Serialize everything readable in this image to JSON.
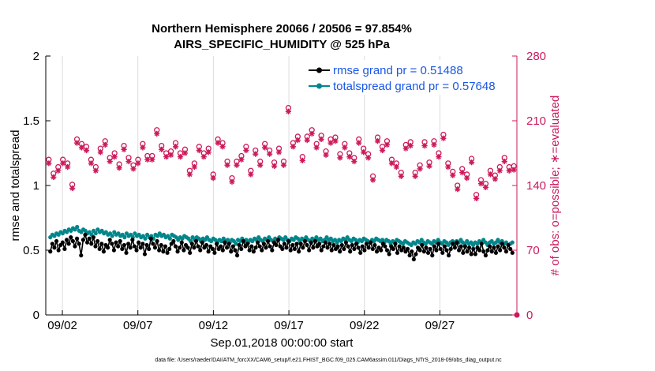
{
  "chart_data": {
    "type": "line",
    "title_line1": "Northern Hemisphere 20066 / 20506 = 97.854%",
    "title_line2": "AIRS_SPECIFIC_HUMIDITY @ 525 hPa",
    "xlabel": "Sep.01,2018 00:00:00 start",
    "ylabel_left": "rmse and totalspread",
    "ylabel_right": "# of obs: o=possible; ∗=evaluated",
    "xlim": [
      0.4,
      31.6
    ],
    "ylim_left": [
      0,
      2
    ],
    "ylim_right": [
      0,
      280
    ],
    "x_ticks": [
      1.5,
      6.5,
      11.5,
      16.5,
      21.5,
      26.5
    ],
    "x_tick_labels": [
      "09/02",
      "09/07",
      "09/12",
      "09/17",
      "09/22",
      "09/27"
    ],
    "y_ticks_left": [
      0,
      0.5,
      1,
      1.5,
      2
    ],
    "y_tick_labels_left": [
      "0",
      "0.5",
      "1",
      "1.5",
      "2"
    ],
    "y_ticks_right": [
      0,
      70,
      140,
      210,
      280
    ],
    "y_tick_labels_right": [
      "0",
      "70",
      "140",
      "210",
      "280"
    ],
    "legend_position": "top-right",
    "footnote": "data file: /Users/raeder/DAI/ATM_forcXX/CAM6_setup/f.e21.FHIST_BGC.f09_025.CAM6assim.011/Diags_NTrS_2018-09/obs_diag_output.nc",
    "colors": {
      "rmse": "#000000",
      "spread": "#00868b",
      "obs": "#cc1a5a",
      "legend_text": "#1a56e8",
      "axis_right": "#cc1a5a"
    },
    "series": [
      {
        "name": "rmse grand pr = 0.51488",
        "color": "#000000",
        "values": [
          0.49,
          0.55,
          0.52,
          0.57,
          0.5,
          0.54,
          0.56,
          0.51,
          0.58,
          0.55,
          0.6,
          0.57,
          0.53,
          0.59,
          0.55,
          0.46,
          0.58,
          0.62,
          0.56,
          0.59,
          0.55,
          0.6,
          0.53,
          0.57,
          0.51,
          0.55,
          0.49,
          0.54,
          0.52,
          0.58,
          0.55,
          0.5,
          0.56,
          0.53,
          0.57,
          0.51,
          0.54,
          0.48,
          0.55,
          0.52,
          0.58,
          0.53,
          0.5,
          0.56,
          0.52,
          0.55,
          0.47,
          0.54,
          0.51,
          0.59,
          0.55,
          0.52,
          0.57,
          0.5,
          0.54,
          0.49,
          0.53,
          0.48,
          0.51,
          0.55,
          0.57,
          0.53,
          0.49,
          0.52,
          0.56,
          0.5,
          0.54,
          0.52,
          0.48,
          0.55,
          0.52,
          0.57,
          0.53,
          0.5,
          0.56,
          0.52,
          0.54,
          0.49,
          0.53,
          0.51,
          0.48,
          0.55,
          0.51,
          0.53,
          0.5,
          0.56,
          0.52,
          0.55,
          0.49,
          0.53,
          0.5,
          0.46,
          0.54,
          0.51,
          0.57,
          0.53,
          0.55,
          0.5,
          0.53,
          0.49,
          0.52,
          0.56,
          0.53,
          0.5,
          0.55,
          0.52,
          0.57,
          0.53,
          0.5,
          0.56,
          0.54,
          0.58,
          0.53,
          0.51,
          0.55,
          0.52,
          0.57,
          0.5,
          0.54,
          0.51,
          0.55,
          0.49,
          0.55,
          0.52,
          0.57,
          0.54,
          0.5,
          0.56,
          0.52,
          0.57,
          0.53,
          0.55,
          0.5,
          0.53,
          0.56,
          0.52,
          0.55,
          0.5,
          0.54,
          0.51,
          0.53,
          0.49,
          0.54,
          0.51,
          0.56,
          0.53,
          0.49,
          0.54,
          0.51,
          0.55,
          0.52,
          0.48,
          0.53,
          0.5,
          0.55,
          0.52,
          0.56,
          0.51,
          0.54,
          0.49,
          0.52,
          0.5,
          0.55,
          0.53,
          0.5,
          0.47,
          0.53,
          0.51,
          0.55,
          0.48,
          0.53,
          0.5,
          0.52,
          0.49,
          0.51,
          0.46,
          0.49,
          0.43,
          0.47,
          0.52,
          0.5,
          0.54,
          0.49,
          0.52,
          0.48,
          0.51,
          0.46,
          0.53,
          0.5,
          0.55,
          0.51,
          0.48,
          0.53,
          0.5,
          0.46,
          0.51,
          0.55,
          0.52,
          0.56,
          0.5,
          0.53,
          0.48,
          0.53,
          0.49,
          0.52,
          0.47,
          0.51,
          0.47,
          0.52,
          0.5,
          0.55,
          0.49,
          0.46,
          0.5,
          0.53,
          0.49,
          0.52,
          0.48,
          0.53,
          0.5,
          0.55,
          0.52,
          0.49,
          0.54,
          0.51,
          0.48
        ]
      },
      {
        "name": "totalspread grand pr = 0.57648",
        "color": "#00868b",
        "values": [
          0.6,
          0.62,
          0.61,
          0.63,
          0.62,
          0.64,
          0.63,
          0.65,
          0.64,
          0.66,
          0.65,
          0.67,
          0.66,
          0.68,
          0.65,
          0.64,
          0.66,
          0.65,
          0.63,
          0.64,
          0.62,
          0.65,
          0.63,
          0.66,
          0.64,
          0.65,
          0.63,
          0.64,
          0.62,
          0.63,
          0.61,
          0.64,
          0.62,
          0.63,
          0.61,
          0.62,
          0.6,
          0.63,
          0.61,
          0.62,
          0.6,
          0.63,
          0.61,
          0.62,
          0.6,
          0.61,
          0.59,
          0.62,
          0.6,
          0.61,
          0.59,
          0.62,
          0.61,
          0.63,
          0.61,
          0.62,
          0.6,
          0.61,
          0.59,
          0.62,
          0.61,
          0.6,
          0.58,
          0.6,
          0.59,
          0.61,
          0.6,
          0.59,
          0.57,
          0.6,
          0.58,
          0.6,
          0.59,
          0.57,
          0.59,
          0.58,
          0.6,
          0.58,
          0.57,
          0.59,
          0.58,
          0.56,
          0.58,
          0.57,
          0.59,
          0.57,
          0.58,
          0.56,
          0.58,
          0.57,
          0.55,
          0.58,
          0.57,
          0.59,
          0.57,
          0.58,
          0.56,
          0.58,
          0.57,
          0.59,
          0.58,
          0.6,
          0.58,
          0.57,
          0.59,
          0.58,
          0.6,
          0.58,
          0.57,
          0.59,
          0.58,
          0.6,
          0.59,
          0.58,
          0.6,
          0.58,
          0.57,
          0.59,
          0.58,
          0.6,
          0.59,
          0.57,
          0.59,
          0.58,
          0.6,
          0.58,
          0.57,
          0.59,
          0.58,
          0.6,
          0.58,
          0.59,
          0.57,
          0.58,
          0.6,
          0.58,
          0.59,
          0.57,
          0.58,
          0.56,
          0.58,
          0.57,
          0.59,
          0.58,
          0.6,
          0.58,
          0.57,
          0.59,
          0.58,
          0.56,
          0.58,
          0.57,
          0.59,
          0.58,
          0.57,
          0.56,
          0.58,
          0.57,
          0.59,
          0.58,
          0.57,
          0.58,
          0.56,
          0.58,
          0.57,
          0.55,
          0.57,
          0.56,
          0.58,
          0.57,
          0.56,
          0.55,
          0.57,
          0.56,
          0.55,
          0.54,
          0.56,
          0.55,
          0.57,
          0.56,
          0.58,
          0.56,
          0.55,
          0.57,
          0.56,
          0.55,
          0.57,
          0.56,
          0.58,
          0.56,
          0.55,
          0.57,
          0.56,
          0.54,
          0.56,
          0.57,
          0.55,
          0.57,
          0.56,
          0.58,
          0.56,
          0.55,
          0.57,
          0.55,
          0.56,
          0.54,
          0.56,
          0.55,
          0.57,
          0.56,
          0.58,
          0.56,
          0.54,
          0.56,
          0.57,
          0.55,
          0.56,
          0.58,
          0.56,
          0.57,
          0.55,
          0.56,
          0.54,
          0.55,
          0.56
        ]
      },
      {
        "name": "# of obs possible",
        "color": "#cc1a5a",
        "marker": "o",
        "axis": "right",
        "values": [
          168,
          153,
          160,
          168,
          164,
          141,
          190,
          185,
          182,
          168,
          160,
          180,
          188,
          170,
          175,
          163,
          183,
          170,
          162,
          168,
          185,
          172,
          172,
          200,
          183,
          175,
          177,
          186,
          175,
          179,
          156,
          164,
          182,
          175,
          180,
          152,
          190,
          186,
          166,
          148,
          166,
          172,
          182,
          156,
          178,
          166,
          185,
          178,
          165,
          180,
          166,
          224,
          186,
          193,
          171,
          193,
          200,
          185,
          194,
          177,
          190,
          192,
          174,
          185,
          175,
          170,
          190,
          180,
          174,
          150,
          192,
          182,
          188,
          168,
          164,
          154,
          184,
          187,
          154,
          162,
          187,
          165,
          188,
          175,
          195,
          164,
          155,
          140,
          158,
          152,
          169,
          130,
          146,
          142,
          156,
          151,
          160,
          170,
          160,
          161
        ]
      },
      {
        "name": "# of obs evaluated",
        "color": "#cc1a5a",
        "marker": "*",
        "axis": "right",
        "values": [
          164,
          149,
          156,
          164,
          160,
          137,
          186,
          181,
          178,
          164,
          156,
          176,
          184,
          166,
          171,
          159,
          179,
          166,
          158,
          164,
          181,
          168,
          168,
          196,
          179,
          171,
          173,
          182,
          171,
          175,
          152,
          160,
          178,
          171,
          176,
          148,
          186,
          182,
          162,
          144,
          162,
          168,
          178,
          152,
          174,
          162,
          181,
          174,
          161,
          176,
          162,
          220,
          182,
          189,
          167,
          189,
          196,
          181,
          190,
          173,
          186,
          188,
          170,
          181,
          171,
          166,
          186,
          176,
          170,
          146,
          188,
          178,
          184,
          164,
          160,
          150,
          180,
          183,
          150,
          158,
          183,
          161,
          184,
          171,
          191,
          160,
          151,
          136,
          154,
          148,
          165,
          126,
          142,
          138,
          152,
          147,
          156,
          166,
          156,
          157
        ]
      }
    ]
  }
}
